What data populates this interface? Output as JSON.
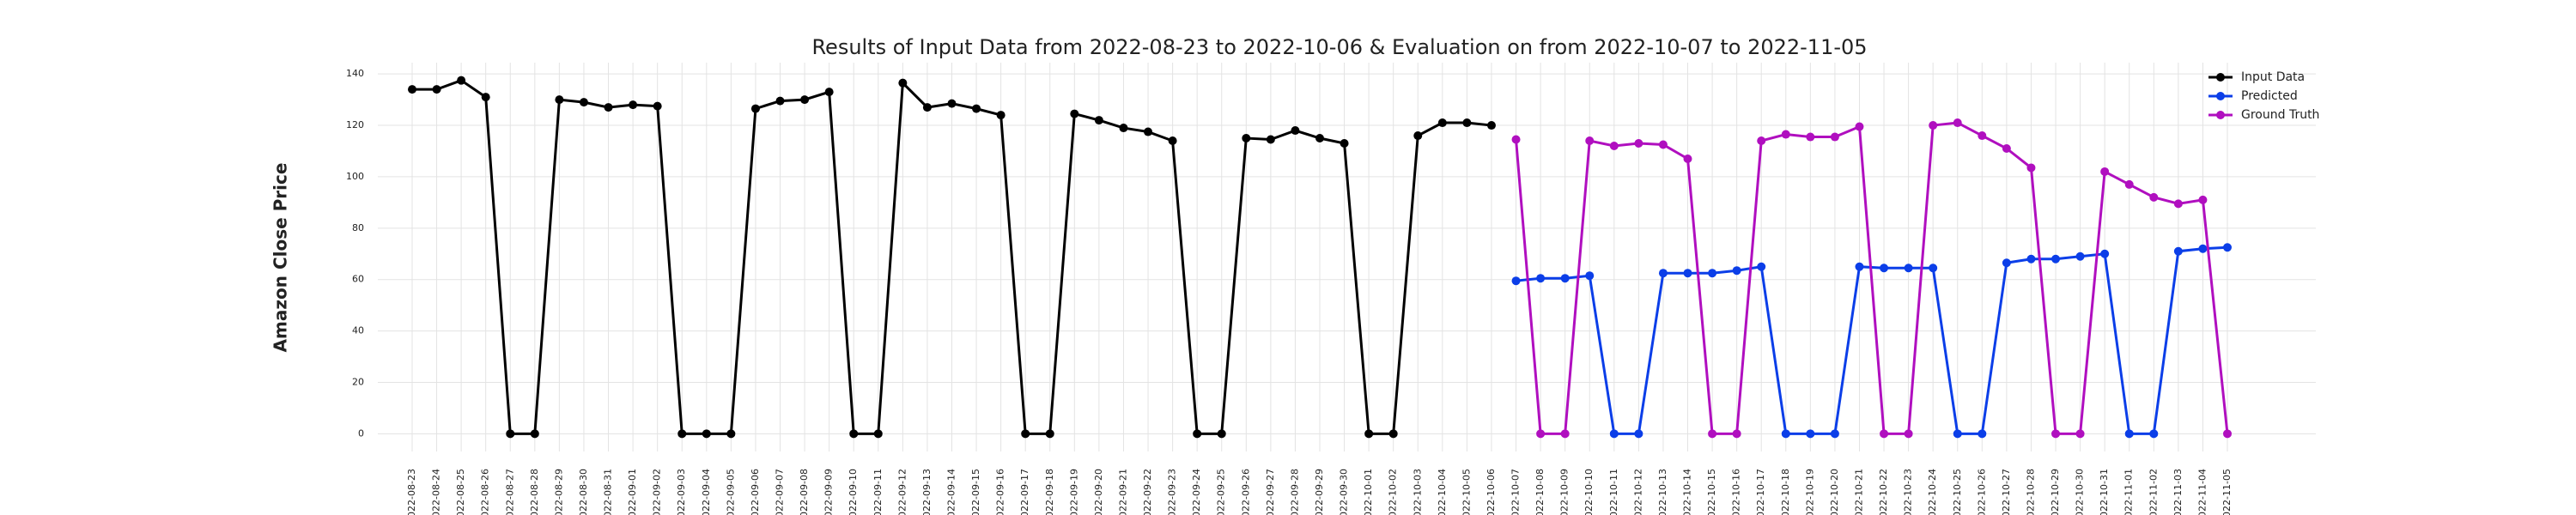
{
  "chart_data": {
    "type": "line",
    "title": "Results of Input Data from 2022-08-23 to 2022-10-06 & Evaluation on from 2022-10-07 to 2022-11-05",
    "y_label": "Amazon Close Price",
    "categories": [
      "2022-08-23",
      "2022-08-24",
      "2022-08-25",
      "2022-08-26",
      "2022-08-27",
      "2022-08-28",
      "2022-08-29",
      "2022-08-30",
      "2022-08-31",
      "2022-09-01",
      "2022-09-02",
      "2022-09-03",
      "2022-09-04",
      "2022-09-05",
      "2022-09-06",
      "2022-09-07",
      "2022-09-08",
      "2022-09-09",
      "2022-09-10",
      "2022-09-11",
      "2022-09-12",
      "2022-09-13",
      "2022-09-14",
      "2022-09-15",
      "2022-09-16",
      "2022-09-17",
      "2022-09-18",
      "2022-09-19",
      "2022-09-20",
      "2022-09-21",
      "2022-09-22",
      "2022-09-23",
      "2022-09-24",
      "2022-09-25",
      "2022-09-26",
      "2022-09-27",
      "2022-09-28",
      "2022-09-29",
      "2022-09-30",
      "2022-10-01",
      "2022-10-02",
      "2022-10-03",
      "2022-10-04",
      "2022-10-05",
      "2022-10-06",
      "2022-10-07",
      "2022-10-08",
      "2022-10-09",
      "2022-10-10",
      "2022-10-11",
      "2022-10-12",
      "2022-10-13",
      "2022-10-14",
      "2022-10-15",
      "2022-10-16",
      "2022-10-17",
      "2022-10-18",
      "2022-10-19",
      "2022-10-20",
      "2022-10-21",
      "2022-10-22",
      "2022-10-23",
      "2022-10-24",
      "2022-10-25",
      "2022-10-26",
      "2022-10-27",
      "2022-10-28",
      "2022-10-29",
      "2022-10-30",
      "2022-10-31",
      "2022-11-01",
      "2022-11-02",
      "2022-11-03",
      "2022-11-04",
      "2022-11-05"
    ],
    "series": [
      {
        "name": "Input Data",
        "color": "#000000",
        "values": [
          134,
          134,
          137.5,
          131,
          0,
          0,
          130,
          129,
          127,
          128,
          127.5,
          0,
          0,
          0,
          126.5,
          129.5,
          130,
          133,
          0,
          0,
          136.5,
          127,
          128.5,
          126.5,
          124,
          0,
          0,
          124.5,
          122,
          119,
          117.5,
          114,
          0,
          0,
          115,
          114.5,
          118,
          115,
          113,
          0,
          0,
          116,
          121,
          121,
          120,
          null,
          null,
          null,
          null,
          null,
          null,
          null,
          null,
          null,
          null,
          null,
          null,
          null,
          null,
          null,
          null,
          null,
          null,
          null,
          null,
          null,
          null,
          null,
          null,
          null,
          null,
          null,
          null,
          null,
          null
        ]
      },
      {
        "name": "Predicted",
        "color": "#0b3ee8",
        "values": [
          null,
          null,
          null,
          null,
          null,
          null,
          null,
          null,
          null,
          null,
          null,
          null,
          null,
          null,
          null,
          null,
          null,
          null,
          null,
          null,
          null,
          null,
          null,
          null,
          null,
          null,
          null,
          null,
          null,
          null,
          null,
          null,
          null,
          null,
          null,
          null,
          null,
          null,
          null,
          null,
          null,
          null,
          null,
          null,
          null,
          59.5,
          60.5,
          60.5,
          61.5,
          0,
          0,
          62.5,
          62.5,
          62.5,
          63.5,
          65,
          0,
          0,
          0,
          65,
          64.5,
          64.5,
          64.5,
          0,
          0,
          66.5,
          68,
          68,
          69,
          70,
          0,
          0,
          71,
          72,
          72.5
        ]
      },
      {
        "name": "Ground Truth",
        "color": "#b00fbf",
        "values": [
          null,
          null,
          null,
          null,
          null,
          null,
          null,
          null,
          null,
          null,
          null,
          null,
          null,
          null,
          null,
          null,
          null,
          null,
          null,
          null,
          null,
          null,
          null,
          null,
          null,
          null,
          null,
          null,
          null,
          null,
          null,
          null,
          null,
          null,
          null,
          null,
          null,
          null,
          null,
          null,
          null,
          null,
          null,
          null,
          null,
          114.5,
          0,
          0,
          114,
          112,
          113,
          112.5,
          107,
          0,
          0,
          114,
          116.5,
          115.5,
          115.5,
          119.5,
          0,
          0,
          120,
          121,
          116,
          111,
          103.5,
          0,
          0,
          102,
          97,
          92,
          89.5,
          91,
          0
        ]
      }
    ],
    "ylim": [
      -6.9,
      144.4
    ],
    "yticks": [
      0,
      20,
      40,
      60,
      80,
      100,
      120,
      140
    ],
    "grid": true,
    "legend": "upper right"
  }
}
